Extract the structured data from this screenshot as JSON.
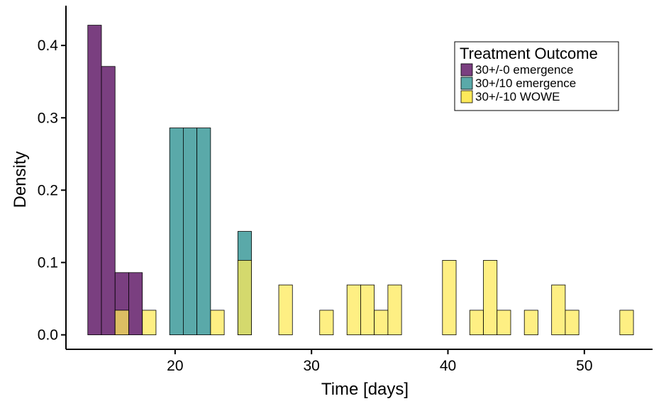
{
  "chart_data": {
    "type": "bar",
    "subtype": "overlapping-histogram",
    "xlabel": "Time [days]",
    "ylabel": "Density",
    "xlim": [
      12,
      55
    ],
    "ylim": [
      -0.02,
      0.455
    ],
    "xticks": [
      20,
      30,
      40,
      50
    ],
    "yticks": [
      0.0,
      0.1,
      0.2,
      0.3,
      0.4
    ],
    "ytick_labels": [
      "0.0",
      "0.1",
      "0.2",
      "0.3",
      "0.4"
    ],
    "bin_width": 1,
    "grid": false,
    "legend_position": "top-right",
    "legend": {
      "title": "Treatment Outcome",
      "entries": [
        {
          "label": "30+/-0 emergence",
          "color": "#7a3f80"
        },
        {
          "label": "30+/10 emergence",
          "color": "#5aa9a9"
        },
        {
          "label": "30+/-10 WOWE",
          "color": "#fde95a"
        }
      ]
    },
    "series": [
      {
        "name": "30+/-0 emergence",
        "color": "#7a3f80",
        "opacity": 1,
        "bins": [
          {
            "x0": 13.6,
            "x1": 14.6,
            "y": 0.428
          },
          {
            "x0": 14.6,
            "x1": 15.6,
            "y": 0.371
          },
          {
            "x0": 15.6,
            "x1": 16.6,
            "y": 0.086
          },
          {
            "x0": 16.6,
            "x1": 17.6,
            "y": 0.086
          }
        ]
      },
      {
        "name": "30+/10 emergence",
        "color": "#5aa9a9",
        "opacity": 1,
        "bins": [
          {
            "x0": 19.6,
            "x1": 20.6,
            "y": 0.286
          },
          {
            "x0": 20.6,
            "x1": 21.6,
            "y": 0.286
          },
          {
            "x0": 21.6,
            "x1": 22.6,
            "y": 0.286
          },
          {
            "x0": 24.6,
            "x1": 25.6,
            "y": 0.143
          }
        ]
      },
      {
        "name": "30+/-10 WOWE",
        "color": "#fde95a",
        "opacity": 0.75,
        "bins": [
          {
            "x0": 15.6,
            "x1": 16.6,
            "y": 0.034
          },
          {
            "x0": 17.6,
            "x1": 18.6,
            "y": 0.034
          },
          {
            "x0": 22.6,
            "x1": 23.6,
            "y": 0.034
          },
          {
            "x0": 24.6,
            "x1": 25.6,
            "y": 0.103
          },
          {
            "x0": 27.6,
            "x1": 28.6,
            "y": 0.069
          },
          {
            "x0": 30.6,
            "x1": 31.6,
            "y": 0.034
          },
          {
            "x0": 32.6,
            "x1": 33.6,
            "y": 0.069
          },
          {
            "x0": 33.6,
            "x1": 34.6,
            "y": 0.069
          },
          {
            "x0": 34.6,
            "x1": 35.6,
            "y": 0.034
          },
          {
            "x0": 35.6,
            "x1": 36.6,
            "y": 0.069
          },
          {
            "x0": 36.6,
            "x1": 37.6,
            "y": 0.0
          },
          {
            "x0": 37.6,
            "x1": 38.6,
            "y": 0.0
          },
          {
            "x0": 38.6,
            "x1": 39.6,
            "y": 0.0
          },
          {
            "x0": 39.6,
            "x1": 40.6,
            "y": 0.103
          },
          {
            "x0": 40.6,
            "x1": 41.6,
            "y": 0.0
          },
          {
            "x0": 41.6,
            "x1": 42.6,
            "y": 0.034
          },
          {
            "x0": 42.6,
            "x1": 43.6,
            "y": 0.103
          },
          {
            "x0": 43.6,
            "x1": 44.6,
            "y": 0.034
          },
          {
            "x0": 44.6,
            "x1": 45.6,
            "y": 0.0
          },
          {
            "x0": 45.6,
            "x1": 46.6,
            "y": 0.034
          },
          {
            "x0": 46.6,
            "x1": 47.6,
            "y": 0.0
          },
          {
            "x0": 47.6,
            "x1": 48.6,
            "y": 0.069
          },
          {
            "x0": 48.6,
            "x1": 49.6,
            "y": 0.034
          },
          {
            "x0": 49.6,
            "x1": 50.6,
            "y": 0.0
          },
          {
            "x0": 50.6,
            "x1": 51.6,
            "y": 0.0
          },
          {
            "x0": 51.6,
            "x1": 52.6,
            "y": 0.0
          },
          {
            "x0": 52.6,
            "x1": 53.6,
            "y": 0.034
          }
        ]
      }
    ]
  }
}
